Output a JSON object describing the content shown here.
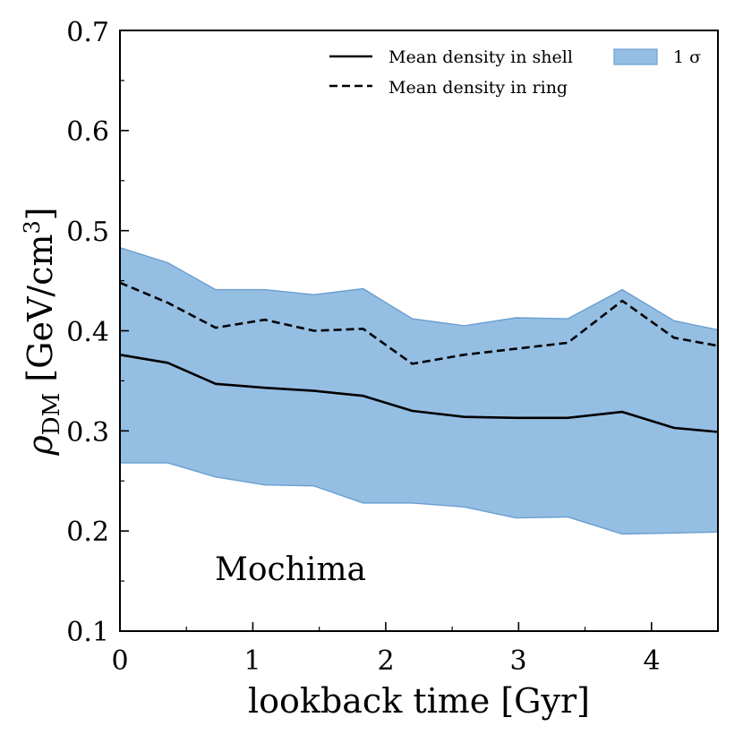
{
  "chart_data": {
    "type": "line",
    "xlabel": "lookback time [Gyr]",
    "ylabel_main": "ρ",
    "ylabel_sub": "DM",
    "ylabel_unit": " [GeV/cm",
    "ylabel_exp": "3",
    "ylabel_close": "]",
    "xlim": [
      0,
      4.5
    ],
    "ylim": [
      0.1,
      0.7
    ],
    "xticks": [
      0,
      1,
      2,
      3,
      4
    ],
    "xtick_labels": [
      "0",
      "1",
      "2",
      "3",
      "4"
    ],
    "yticks": [
      0.1,
      0.2,
      0.3,
      0.4,
      0.5,
      0.6,
      0.7
    ],
    "ytick_labels": [
      "0.1",
      "0.2",
      "0.3",
      "0.4",
      "0.5",
      "0.6",
      "0.7"
    ],
    "x": [
      0,
      0.36,
      0.72,
      1.09,
      1.46,
      1.83,
      2.2,
      2.59,
      2.98,
      3.37,
      3.78,
      4.17,
      4.5
    ],
    "series": [
      {
        "name": "Mean density in shell",
        "style": "solid",
        "color": "#000000",
        "values": [
          0.376,
          0.368,
          0.347,
          0.343,
          0.34,
          0.335,
          0.32,
          0.314,
          0.313,
          0.313,
          0.319,
          0.303,
          0.299
        ]
      },
      {
        "name": "Mean density in ring",
        "style": "dashed",
        "color": "#000000",
        "values": [
          0.448,
          0.428,
          0.403,
          0.411,
          0.4,
          0.402,
          0.367,
          0.376,
          0.382,
          0.388,
          0.43,
          0.393,
          0.385
        ]
      }
    ],
    "band": {
      "name": "1 σ",
      "color": "#95bee3",
      "edge_color": "#6a9fd1",
      "upper": [
        0.483,
        0.468,
        0.441,
        0.441,
        0.436,
        0.442,
        0.412,
        0.405,
        0.413,
        0.412,
        0.441,
        0.41,
        0.401
      ],
      "lower": [
        0.268,
        0.268,
        0.254,
        0.246,
        0.245,
        0.228,
        0.228,
        0.224,
        0.213,
        0.214,
        0.197,
        0.198,
        0.199
      ]
    },
    "legend_position": "top",
    "annotation": "Mochima"
  }
}
